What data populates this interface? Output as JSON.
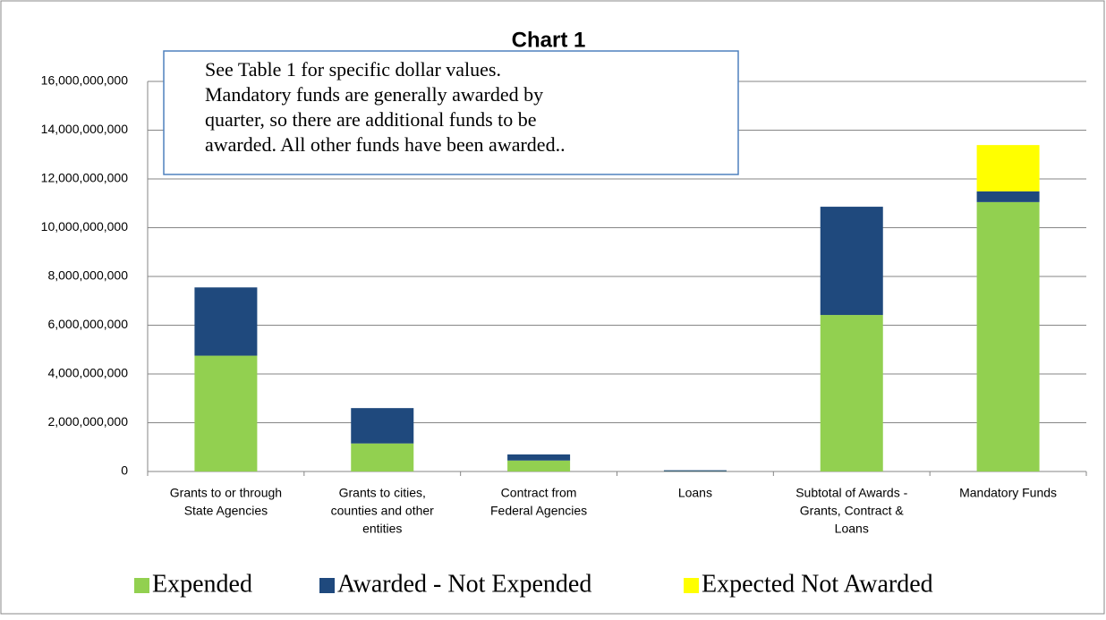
{
  "chart_data": {
    "type": "stacked_bar",
    "title": "Chart 1",
    "annotation": [
      "See Table 1 for specific dollar values.",
      "Mandatory funds are generally awarded by",
      "quarter, so there are additional funds to be",
      "awarded.  All other funds have been awarded.."
    ],
    "categories": [
      [
        "Grants to or through",
        "State Agencies"
      ],
      [
        "Grants to cities,",
        "counties and other",
        "entities"
      ],
      [
        "Contract from",
        "Federal Agencies"
      ],
      [
        "Loans"
      ],
      [
        "Subtotal of Awards -",
        "Grants, Contract &",
        "Loans"
      ],
      [
        "Mandatory Funds"
      ]
    ],
    "series": [
      {
        "name": "Expended",
        "color": "#92d050",
        "values": [
          4750000000,
          1150000000,
          450000000,
          10000000,
          6420000000,
          11050000000
        ]
      },
      {
        "name": "Awarded - Not Expended",
        "color": "#1f497d",
        "values": [
          2800000000,
          1450000000,
          250000000,
          40000000,
          4440000000,
          440000000
        ]
      },
      {
        "name": "Expected Not Awarded",
        "color": "#ffff00",
        "values": [
          0,
          0,
          0,
          0,
          0,
          1900000000
        ]
      }
    ],
    "ylim": [
      0,
      16000000000
    ],
    "yticks": [
      0,
      {
        "value": 2000000000,
        "label": "2,000,000,000"
      },
      {
        "value": 4000000000,
        "label": "4,000,000,000"
      },
      {
        "value": 6000000000,
        "label": "6,000,000,000"
      },
      {
        "value": 8000000000,
        "label": "8,000,000,000"
      },
      {
        "value": 10000000000,
        "label": "10,000,000,000"
      },
      {
        "value": 12000000000,
        "label": "12,000,000,000"
      },
      {
        "value": 14000000000,
        "label": "14,000,000,000"
      },
      {
        "value": 16000000000,
        "label": "16,000,000,000"
      }
    ],
    "grid": true,
    "legend": "bottom"
  }
}
